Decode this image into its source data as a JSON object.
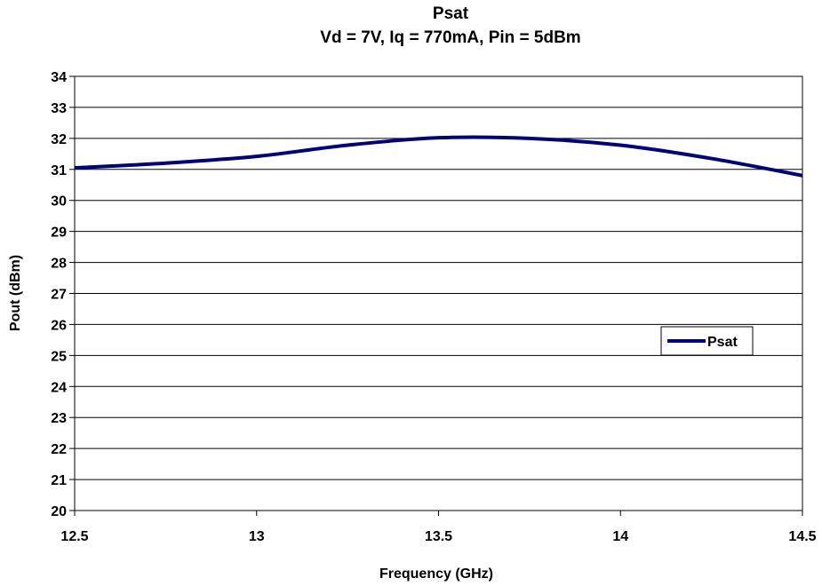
{
  "chart_data": {
    "type": "line",
    "title": "Psat",
    "subtitle": "Vd = 7V, Iq = 770mA, Pin = 5dBm",
    "xlabel": "Frequency (GHz)",
    "ylabel": "Pout (dBm)",
    "xlim": [
      12.5,
      14.5
    ],
    "ylim": [
      20,
      34
    ],
    "xticks": [
      12.5,
      13,
      13.5,
      14,
      14.5
    ],
    "xtick_labels": [
      "12.5",
      "13",
      "13.5",
      "14",
      "14.5"
    ],
    "yticks": [
      20,
      21,
      22,
      23,
      24,
      25,
      26,
      27,
      28,
      29,
      30,
      31,
      32,
      33,
      34
    ],
    "ytick_labels": [
      "20",
      "21",
      "22",
      "23",
      "24",
      "25",
      "26",
      "27",
      "28",
      "29",
      "30",
      "31",
      "32",
      "33",
      "34"
    ],
    "grid": "horizontal",
    "legend": "right",
    "series": [
      {
        "name": "Psat",
        "color": "#000080",
        "x": [
          12.5,
          12.75,
          13.0,
          13.25,
          13.5,
          13.75,
          14.0,
          14.25,
          14.5
        ],
        "y": [
          31.05,
          31.2,
          31.42,
          31.78,
          32.02,
          32.0,
          31.78,
          31.35,
          30.8
        ]
      }
    ]
  }
}
